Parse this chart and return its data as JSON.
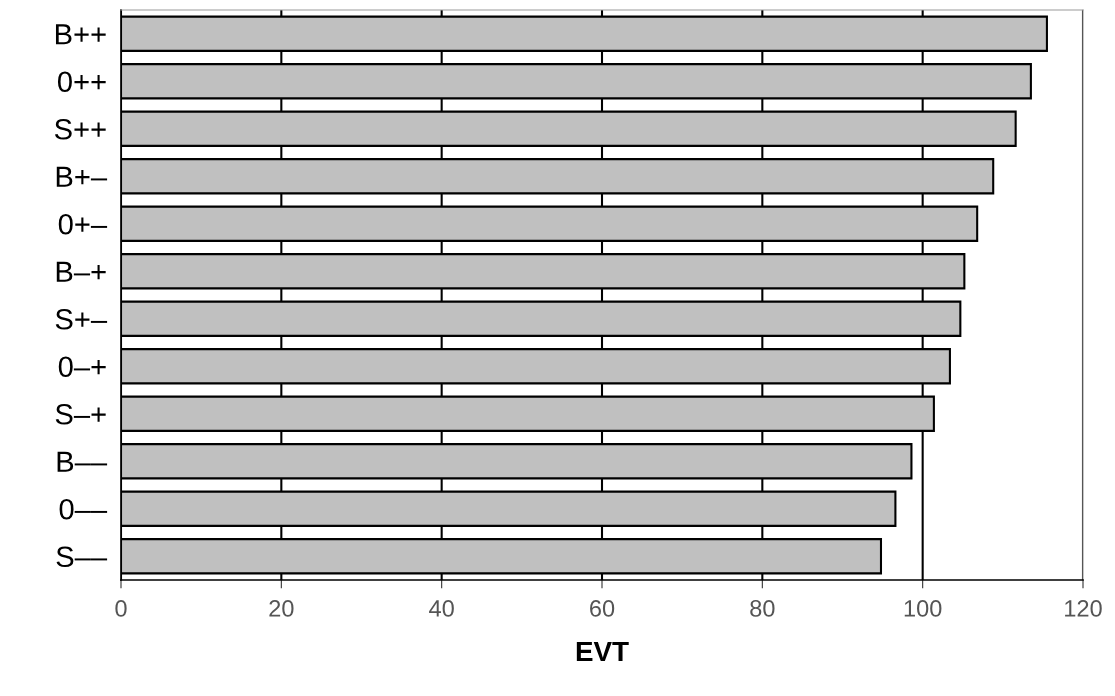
{
  "chart_data": {
    "type": "bar",
    "orientation": "horizontal",
    "xlabel": "EVT",
    "categories": [
      "B++",
      "0++",
      "S++",
      "B+–",
      "0+–",
      "B–+",
      "S+–",
      "0–+",
      "S–+",
      "B––",
      "0––",
      "S––"
    ],
    "values": [
      115.5,
      113.5,
      111.6,
      108.8,
      106.8,
      105.2,
      104.7,
      103.4,
      101.4,
      98.6,
      96.6,
      94.8
    ],
    "color": "#c0c0c0",
    "xlim": [
      0,
      120
    ],
    "xticks": [
      0,
      20,
      40,
      60,
      80,
      100,
      120
    ],
    "grid": "x"
  }
}
